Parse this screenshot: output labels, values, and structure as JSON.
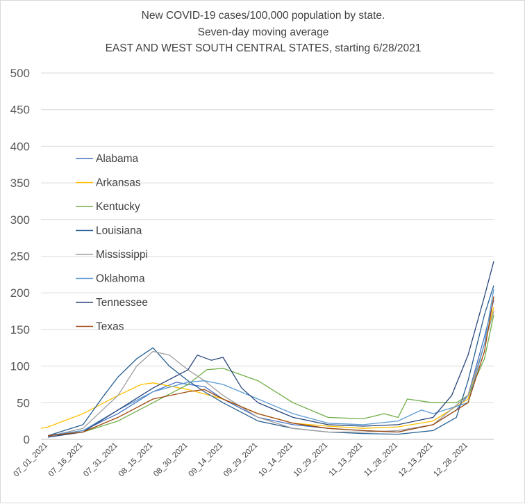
{
  "chart_data": {
    "type": "line",
    "title": [
      "New COVID-19 cases/100,000 population by state.",
      "Seven-day moving average",
      "EAST AND WEST SOUTH CENTRAL STATES, starting 6/28/2021"
    ],
    "xlabel": "",
    "ylabel": "",
    "ylim": [
      0,
      500
    ],
    "yticks": [
      "0",
      "50",
      "100",
      "150",
      "200",
      "250",
      "300",
      "350",
      "400",
      "450",
      "500"
    ],
    "xticks": [
      "07_01_2021",
      "07_16_2021",
      "07_31_2021",
      "08_15_2021",
      "08_30_2021",
      "09_14_2021",
      "09_29_2021",
      "10_14_2021",
      "10_29_2021",
      "11_13_2021",
      "11_28_2021",
      "12_13_2021",
      "12_28_2021"
    ],
    "x_domain": [
      "06/28/2021",
      "01/08/2022"
    ],
    "grid": "horizontal",
    "legend_position": "left-inside",
    "series": [
      {
        "name": "Alabama",
        "color": "#4472c4",
        "points": [
          [
            "07_01_2021",
            5
          ],
          [
            "07_16_2021",
            12
          ],
          [
            "07_31_2021",
            35
          ],
          [
            "08_15_2021",
            65
          ],
          [
            "08_25_2021",
            78
          ],
          [
            "08_30_2021",
            75
          ],
          [
            "09_06_2021",
            72
          ],
          [
            "09_14_2021",
            55
          ],
          [
            "09_29_2021",
            30
          ],
          [
            "10_14_2021",
            20
          ],
          [
            "10_29_2021",
            15
          ],
          [
            "11_13_2021",
            12
          ],
          [
            "11_28_2021",
            10
          ],
          [
            "12_13_2021",
            20
          ],
          [
            "12_23_2021",
            40
          ],
          [
            "12_28_2021",
            60
          ],
          [
            "01_04_2022",
            140
          ],
          [
            "01_08_2022",
            190
          ]
        ]
      },
      {
        "name": "Arkansas",
        "color": "#ffc000",
        "points": [
          [
            "06_28_2021",
            15
          ],
          [
            "07_01_2021",
            17
          ],
          [
            "07_16_2021",
            35
          ],
          [
            "07_31_2021",
            60
          ],
          [
            "08_10_2021",
            75
          ],
          [
            "08_15_2021",
            77
          ],
          [
            "08_30_2021",
            68
          ],
          [
            "09_14_2021",
            55
          ],
          [
            "09_29_2021",
            35
          ],
          [
            "10_14_2021",
            22
          ],
          [
            "10_29_2021",
            18
          ],
          [
            "11_13_2021",
            15
          ],
          [
            "11_28_2021",
            17
          ],
          [
            "12_13_2021",
            25
          ],
          [
            "12_28_2021",
            55
          ],
          [
            "01_04_2022",
            130
          ],
          [
            "01_08_2022",
            180
          ]
        ]
      },
      {
        "name": "Kentucky",
        "color": "#70ad47",
        "points": [
          [
            "07_01_2021",
            5
          ],
          [
            "07_16_2021",
            10
          ],
          [
            "07_31_2021",
            25
          ],
          [
            "08_15_2021",
            50
          ],
          [
            "08_30_2021",
            75
          ],
          [
            "09_07_2021",
            95
          ],
          [
            "09_14_2021",
            97
          ],
          [
            "09_29_2021",
            80
          ],
          [
            "10_14_2021",
            50
          ],
          [
            "10_29_2021",
            30
          ],
          [
            "11_13_2021",
            28
          ],
          [
            "11_22_2021",
            35
          ],
          [
            "11_28_2021",
            30
          ],
          [
            "12_02_2021",
            55
          ],
          [
            "12_13_2021",
            50
          ],
          [
            "12_23_2021",
            50
          ],
          [
            "12_28_2021",
            60
          ],
          [
            "01_04_2022",
            110
          ],
          [
            "01_08_2022",
            170
          ]
        ]
      },
      {
        "name": "Louisiana",
        "color": "#255e91",
        "points": [
          [
            "07_01_2021",
            5
          ],
          [
            "07_16_2021",
            20
          ],
          [
            "07_25_2021",
            60
          ],
          [
            "07_31_2021",
            85
          ],
          [
            "08_08_2021",
            110
          ],
          [
            "08_15_2021",
            125
          ],
          [
            "08_22_2021",
            100
          ],
          [
            "08_30_2021",
            80
          ],
          [
            "09_06_2021",
            65
          ],
          [
            "09_14_2021",
            50
          ],
          [
            "09_29_2021",
            25
          ],
          [
            "10_14_2021",
            15
          ],
          [
            "10_29_2021",
            10
          ],
          [
            "11_13_2021",
            8
          ],
          [
            "11_28_2021",
            7
          ],
          [
            "12_13_2021",
            12
          ],
          [
            "12_23_2021",
            30
          ],
          [
            "12_28_2021",
            80
          ],
          [
            "01_04_2022",
            170
          ],
          [
            "01_08_2022",
            210
          ]
        ]
      },
      {
        "name": "Mississippi",
        "color": "#9e9e9e",
        "points": [
          [
            "07_01_2021",
            4
          ],
          [
            "07_16_2021",
            15
          ],
          [
            "07_31_2021",
            60
          ],
          [
            "08_08_2021",
            100
          ],
          [
            "08_15_2021",
            120
          ],
          [
            "08_22_2021",
            115
          ],
          [
            "08_30_2021",
            95
          ],
          [
            "09_06_2021",
            80
          ],
          [
            "09_14_2021",
            60
          ],
          [
            "09_29_2021",
            30
          ],
          [
            "10_14_2021",
            15
          ],
          [
            "10_29_2021",
            10
          ],
          [
            "11_13_2021",
            10
          ],
          [
            "11_28_2021",
            12
          ],
          [
            "12_13_2021",
            20
          ],
          [
            "12_28_2021",
            60
          ],
          [
            "01_04_2022",
            130
          ],
          [
            "01_08_2022",
            175
          ]
        ]
      },
      {
        "name": "Oklahoma",
        "color": "#5b9bd5",
        "points": [
          [
            "07_01_2021",
            5
          ],
          [
            "07_16_2021",
            12
          ],
          [
            "07_31_2021",
            40
          ],
          [
            "08_15_2021",
            65
          ],
          [
            "08_30_2021",
            78
          ],
          [
            "09_06_2021",
            80
          ],
          [
            "09_14_2021",
            75
          ],
          [
            "09_29_2021",
            55
          ],
          [
            "10_14_2021",
            35
          ],
          [
            "10_29_2021",
            22
          ],
          [
            "11_13_2021",
            20
          ],
          [
            "11_28_2021",
            25
          ],
          [
            "12_08_2021",
            40
          ],
          [
            "12_13_2021",
            35
          ],
          [
            "12_28_2021",
            50
          ],
          [
            "01_04_2022",
            130
          ],
          [
            "01_08_2022",
            205
          ]
        ]
      },
      {
        "name": "Tennessee",
        "color": "#264478",
        "points": [
          [
            "07_01_2021",
            3
          ],
          [
            "07_16_2021",
            10
          ],
          [
            "07_31_2021",
            40
          ],
          [
            "08_15_2021",
            70
          ],
          [
            "08_30_2021",
            95
          ],
          [
            "09_03_2021",
            115
          ],
          [
            "09_09_2021",
            108
          ],
          [
            "09_14_2021",
            112
          ],
          [
            "09_22_2021",
            70
          ],
          [
            "09_29_2021",
            50
          ],
          [
            "10_14_2021",
            30
          ],
          [
            "10_29_2021",
            20
          ],
          [
            "11_13_2021",
            18
          ],
          [
            "11_28_2021",
            20
          ],
          [
            "12_13_2021",
            30
          ],
          [
            "12_21_2021",
            60
          ],
          [
            "12_28_2021",
            115
          ],
          [
            "01_04_2022",
            195
          ],
          [
            "01_08_2022",
            243
          ]
        ]
      },
      {
        "name": "Texas",
        "color": "#9e480e",
        "points": [
          [
            "07_01_2021",
            5
          ],
          [
            "07_16_2021",
            10
          ],
          [
            "07_31_2021",
            30
          ],
          [
            "08_15_2021",
            55
          ],
          [
            "08_30_2021",
            65
          ],
          [
            "09_06_2021",
            68
          ],
          [
            "09_14_2021",
            55
          ],
          [
            "09_29_2021",
            35
          ],
          [
            "10_14_2021",
            22
          ],
          [
            "10_29_2021",
            15
          ],
          [
            "11_13_2021",
            12
          ],
          [
            "11_28_2021",
            10
          ],
          [
            "12_13_2021",
            20
          ],
          [
            "12_28_2021",
            50
          ],
          [
            "01_04_2022",
            120
          ],
          [
            "01_08_2022",
            195
          ]
        ]
      }
    ]
  }
}
